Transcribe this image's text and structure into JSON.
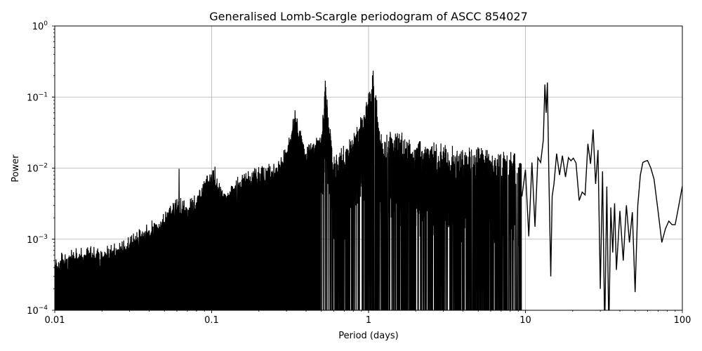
{
  "chart_data": {
    "type": "line",
    "title": "Generalised Lomb-Scargle periodogram of ASCC 854027",
    "xlabel": "Period (days)",
    "ylabel": "Power",
    "xscale": "log",
    "yscale": "log",
    "xlim": [
      0.01,
      100
    ],
    "ylim": [
      0.0001,
      1
    ],
    "grid": true,
    "x_ticks": [
      "0.01",
      "0.1",
      "1",
      "10",
      "100"
    ],
    "y_ticks": [
      "10^-4",
      "10^-3",
      "10^-2",
      "10^-1",
      "10^0"
    ],
    "line_color": "#000000",
    "notable_peaks": [
      {
        "period": 1.07,
        "power": 0.235
      },
      {
        "period": 0.53,
        "power": 0.17
      },
      {
        "period": 13.8,
        "power": 0.16
      },
      {
        "period": 13.3,
        "power": 0.15
      },
      {
        "period": 0.97,
        "power": 0.085
      },
      {
        "period": 0.34,
        "power": 0.065
      },
      {
        "period": 27.0,
        "power": 0.035
      },
      {
        "period": 63.0,
        "power": 0.0128
      },
      {
        "period": 0.105,
        "power": 0.0105
      },
      {
        "period": 0.062,
        "power": 0.0098
      }
    ],
    "envelope": {
      "period": [
        0.01,
        0.012,
        0.015,
        0.02,
        0.025,
        0.03,
        0.04,
        0.05,
        0.06,
        0.07,
        0.08,
        0.1,
        0.12,
        0.15,
        0.2,
        0.25,
        0.3,
        0.34,
        0.4,
        0.5,
        0.53,
        0.6,
        0.8,
        0.97,
        1.07,
        1.2,
        1.5,
        2,
        3,
        4,
        5,
        6,
        8,
        9.5
      ],
      "max_power": [
        0.0006,
        0.0007,
        0.0008,
        0.0008,
        0.0009,
        0.0011,
        0.0018,
        0.0024,
        0.004,
        0.0035,
        0.0045,
        0.0105,
        0.005,
        0.008,
        0.011,
        0.012,
        0.02,
        0.065,
        0.02,
        0.035,
        0.17,
        0.015,
        0.03,
        0.085,
        0.235,
        0.03,
        0.035,
        0.025,
        0.022,
        0.02,
        0.02,
        0.018,
        0.017,
        0.015
      ]
    },
    "tail_series": {
      "period": [
        9.5,
        10,
        10.5,
        11,
        11.5,
        12,
        12.5,
        13.0,
        13.3,
        13.55,
        13.8,
        14.1,
        14.5,
        14.8,
        15.2,
        15.8,
        16.5,
        17.2,
        18,
        18.8,
        19.5,
        20.2,
        21,
        22,
        23,
        24,
        25,
        26,
        27,
        28,
        29,
        30,
        31,
        32,
        33,
        34,
        35,
        36,
        37,
        38,
        40,
        42,
        44,
        46,
        48,
        50,
        52,
        54,
        56,
        58,
        60,
        63,
        66,
        70,
        74,
        78,
        82,
        86,
        90,
        95,
        100
      ],
      "power": [
        0.004,
        0.0095,
        0.0011,
        0.012,
        0.0015,
        0.014,
        0.012,
        0.025,
        0.15,
        0.06,
        0.16,
        0.008,
        0.0003,
        0.004,
        0.006,
        0.016,
        0.008,
        0.015,
        0.0075,
        0.014,
        0.0127,
        0.0138,
        0.0118,
        0.0035,
        0.0046,
        0.0042,
        0.022,
        0.0115,
        0.035,
        0.006,
        0.018,
        0.0002,
        0.009,
        5e-05,
        0.0055,
        5e-05,
        0.0028,
        0.00065,
        0.0032,
        0.00037,
        0.0025,
        0.0005,
        0.003,
        0.0009,
        0.0024,
        0.00018,
        0.003,
        0.008,
        0.012,
        0.0125,
        0.0128,
        0.01,
        0.007,
        0.0025,
        0.0009,
        0.0014,
        0.0018,
        0.0016,
        0.0016,
        0.003,
        0.0056
      ]
    }
  }
}
